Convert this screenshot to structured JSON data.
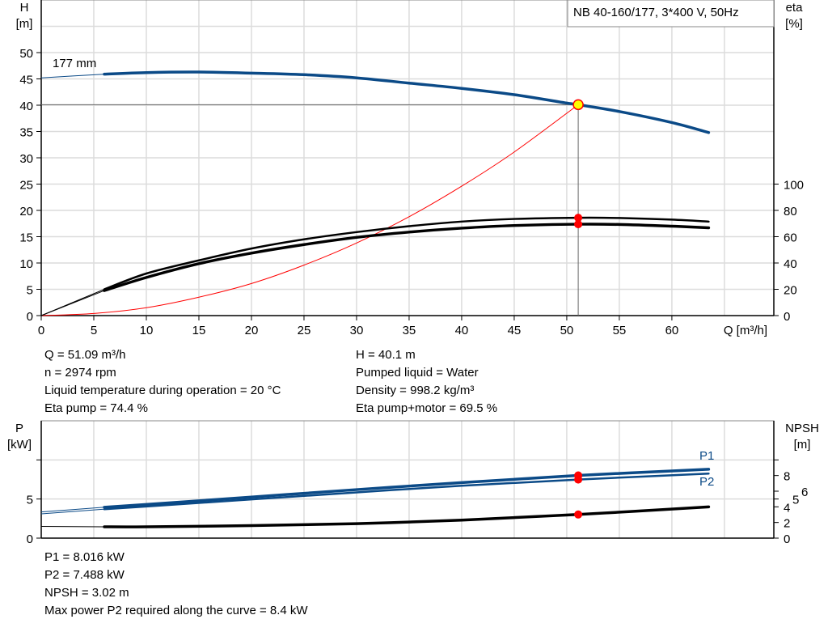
{
  "chart_data": [
    {
      "type": "line",
      "title": "NB 40-160/177, 3*400 V, 50Hz",
      "xlabel": "Q [m³/h]",
      "ylabel": "H\n[m]",
      "ylabel_right": "eta\n[%]",
      "xlim": [
        0,
        69.7
      ],
      "ylim": [
        0,
        60
      ],
      "ylim_right": [
        0,
        240
      ],
      "grid": true,
      "x_ticks": [
        "0",
        "5",
        "10",
        "15",
        "20",
        "25",
        "30",
        "35",
        "40",
        "45",
        "50",
        "55",
        "60"
      ],
      "y_ticks": [
        "0",
        "5",
        "10",
        "15",
        "20",
        "25",
        "30",
        "35",
        "40",
        "45",
        "50"
      ],
      "y_ticks_right": [
        "0",
        "20",
        "40",
        "60",
        "80",
        "100"
      ],
      "curve_label": "177 mm",
      "series": [
        {
          "key": "H",
          "axis": "left",
          "color": "#0b4a87",
          "x": [
            0,
            6,
            10,
            15,
            20,
            25,
            30,
            35,
            40,
            45,
            50,
            51.09,
            55,
            60,
            63.5
          ],
          "y": [
            45.2,
            45.9,
            46.2,
            46.3,
            46.1,
            45.8,
            45.2,
            44.2,
            43.2,
            42.0,
            40.4,
            40.1,
            38.8,
            36.7,
            34.8
          ]
        },
        {
          "key": "eta_pump",
          "axis": "right",
          "color": "#000000",
          "x": [
            0,
            6,
            10,
            15,
            20,
            25,
            30,
            35,
            40,
            45,
            51.09,
            55,
            60,
            63.5
          ],
          "y": [
            0,
            20,
            32,
            42,
            51,
            58,
            63.5,
            68,
            71.5,
            73.5,
            74.4,
            74.2,
            73,
            71.5
          ]
        },
        {
          "key": "eta_pump_motor",
          "axis": "right",
          "color": "#000000",
          "x": [
            0,
            6,
            10,
            15,
            20,
            25,
            30,
            35,
            40,
            45,
            51.09,
            55,
            60,
            63.5
          ],
          "y": [
            0,
            19,
            29,
            39.5,
            47.5,
            54,
            59.5,
            63.5,
            66.5,
            68.5,
            69.5,
            69.3,
            68,
            66.8
          ]
        },
        {
          "key": "system_curve",
          "axis": "left",
          "color": "#ff0000",
          "x": [
            0,
            5,
            10,
            15,
            20,
            25,
            30,
            35,
            40,
            45,
            51.09
          ],
          "y": [
            0,
            0.4,
            1.5,
            3.5,
            6.1,
            9.6,
            13.8,
            18.8,
            24.6,
            31.1,
            40.1
          ]
        }
      ],
      "operating_point": {
        "Q": 51.09,
        "H": 40.1,
        "eta_pump": 74.4,
        "eta_pump_motor": 69.5
      }
    },
    {
      "type": "line",
      "ylabel": "P\n[kW]",
      "ylabel_right": "NPSH\n[m]",
      "xlim": [
        0,
        69.7
      ],
      "ylim": [
        0,
        15
      ],
      "ylim_right": [
        0,
        15
      ],
      "grid": true,
      "y_ticks": [
        "0",
        "5"
      ],
      "y_ticks_right": [
        "0",
        "2",
        "4",
        "5",
        "6",
        "8"
      ],
      "series": [
        {
          "key": "P1",
          "name": "P1",
          "axis": "left",
          "color": "#0b4a87",
          "x": [
            0,
            6,
            10,
            20,
            30,
            40,
            51.09,
            63.5
          ],
          "y": [
            3.35,
            3.95,
            4.3,
            5.25,
            6.2,
            7.1,
            8.016,
            8.8
          ]
        },
        {
          "key": "P2",
          "name": "P2",
          "axis": "left",
          "color": "#0b4a87",
          "x": [
            0,
            6,
            10,
            20,
            30,
            40,
            51.09,
            63.5
          ],
          "y": [
            3.1,
            3.7,
            4.05,
            4.95,
            5.85,
            6.7,
            7.488,
            8.25
          ]
        },
        {
          "key": "NPSH",
          "axis": "right",
          "color": "#000000",
          "x": [
            0,
            6,
            10,
            20,
            30,
            40,
            51.09,
            63.5
          ],
          "y": [
            1.5,
            1.45,
            1.45,
            1.6,
            1.85,
            2.3,
            3.02,
            4.0
          ]
        }
      ],
      "operating_point": {
        "Q": 51.09,
        "P1": 8.016,
        "P2": 7.488,
        "NPSH": 3.02
      }
    }
  ],
  "info_top": {
    "left": [
      "Q = 51.09 m³/h",
      "n = 2974 rpm",
      "Liquid temperature during operation = 20 °C",
      "Eta pump = 74.4 %"
    ],
    "right": [
      "H = 40.1 m",
      "Pumped liquid = Water",
      "Density = 998.2 kg/m³",
      "Eta pump+motor = 69.5 %"
    ]
  },
  "info_bottom": [
    "P1 = 8.016 kW",
    "P2 = 7.488 kW",
    "NPSH = 3.02 m",
    "Max power P2 required along the curve = 8.4 kW"
  ]
}
